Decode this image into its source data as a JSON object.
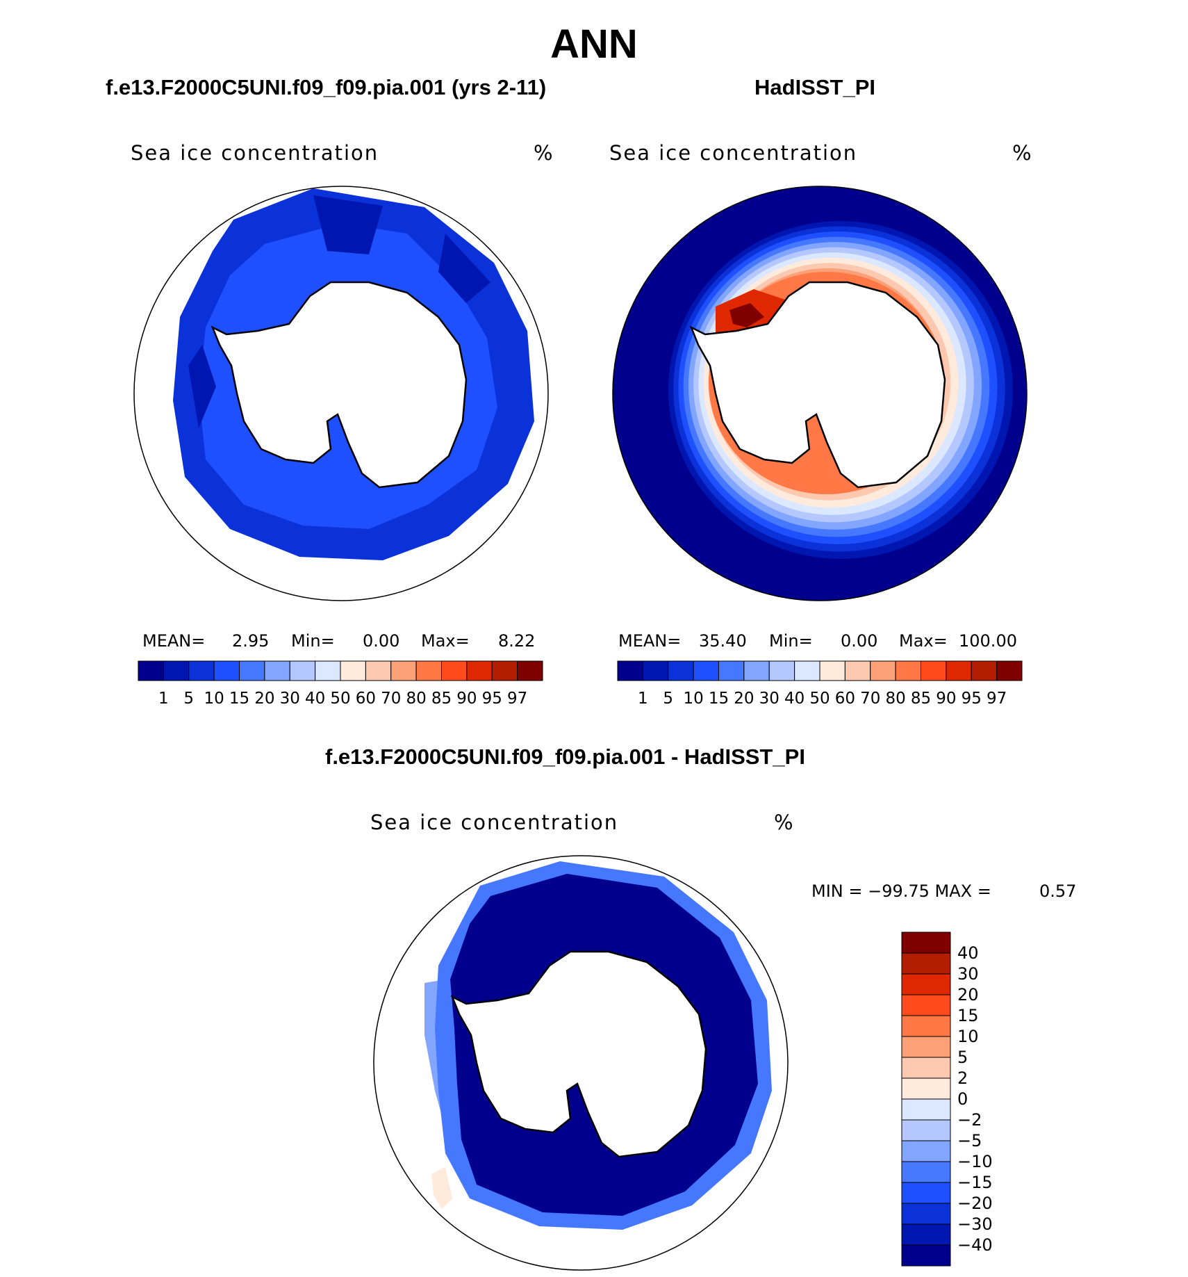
{
  "figure": {
    "title": "ANN",
    "panels": [
      {
        "heading": "f.e13.F2000C5UNI.f09_f09.pia.001 (yrs 2-11)",
        "variable_label": "Sea ice concentration",
        "unit": "%",
        "stats": {
          "mean_label": "MEAN=",
          "mean": "2.95",
          "min_label": "Min=",
          "min": "0.00",
          "max_label": "Max=",
          "max": "8.22"
        }
      },
      {
        "heading": "HadISST_PI",
        "variable_label": "Sea ice concentration",
        "unit": "%",
        "stats": {
          "mean_label": "MEAN=",
          "mean": "35.40",
          "min_label": "Min=",
          "min": "0.00",
          "max_label": "Max=",
          "max": "100.00"
        }
      }
    ],
    "diff_panel": {
      "heading": "f.e13.F2000C5UNI.f09_f09.pia.001 - HadISST_PI",
      "variable_label": "Sea ice concentration",
      "unit": "%",
      "minmax_text": "MIN = −99.75 MAX =",
      "max_value": "0.57"
    }
  },
  "colorbars": {
    "abs_levels": [
      "1",
      "5",
      "10",
      "15",
      "20",
      "30",
      "40",
      "50",
      "60",
      "70",
      "80",
      "85",
      "90",
      "95",
      "97"
    ],
    "abs_colors": [
      "#00008c",
      "#0016b0",
      "#0a32d8",
      "#1e50ff",
      "#4678ff",
      "#82a5ff",
      "#b4c8ff",
      "#dce8ff",
      "#ffeadc",
      "#fcc8b0",
      "#fca078",
      "#ff7846",
      "#ff4b1e",
      "#e02800",
      "#b41e00",
      "#800000"
    ],
    "diff_levels": [
      "−40",
      "−30",
      "−20",
      "−15",
      "−10",
      "−5",
      "−2",
      "0",
      "2",
      "5",
      "10",
      "15",
      "20",
      "30",
      "40"
    ],
    "diff_colors": [
      "#00008c",
      "#0016b0",
      "#0a32d8",
      "#1e50ff",
      "#4678ff",
      "#82a5ff",
      "#b4c8ff",
      "#dce8ff",
      "#ffeadc",
      "#fcc8b0",
      "#fca078",
      "#ff7846",
      "#ff4b1e",
      "#e02800",
      "#b41e00",
      "#800000"
    ]
  },
  "colors": {
    "land": "#ffffff",
    "coast": "#000000",
    "model_outer": "#0a32d8",
    "model_inner": "#1e50ff",
    "model_deep": "#0016b0",
    "obs_open_ocean": "#00008c",
    "obs_ring": [
      "#0016b0",
      "#0a32d8",
      "#1e50ff",
      "#4678ff",
      "#82a5ff",
      "#b4c8ff",
      "#dce8ff",
      "#ffeadc",
      "#fcc8b0",
      "#fca078"
    ],
    "obs_core": "#ff7846",
    "obs_hot": "#e02800",
    "obs_max": "#800000",
    "diff_main": "#00008c",
    "diff_edge": "#4678ff"
  }
}
